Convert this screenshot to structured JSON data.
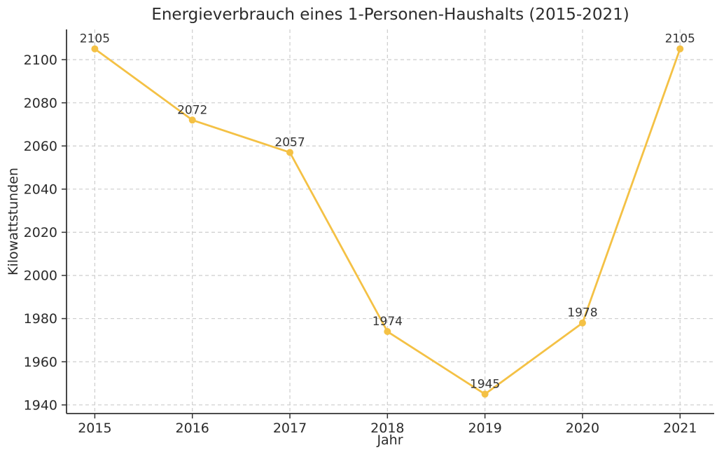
{
  "chart_data": {
    "type": "line",
    "title": "Energieverbrauch eines 1-Personen-Haushalts (2015-2021)",
    "xlabel": "Jahr",
    "ylabel": "Kilowattstunden",
    "x": [
      2015,
      2016,
      2017,
      2018,
      2019,
      2020,
      2021
    ],
    "series": [
      {
        "values": [
          2105,
          2072,
          2057,
          1974,
          1945,
          1978,
          2105
        ],
        "point_labels": [
          "2105",
          "2072",
          "2057",
          "1974",
          "1945",
          "1978",
          "2105"
        ]
      }
    ],
    "xticks": [
      "2015",
      "2016",
      "2017",
      "2018",
      "2019",
      "2020",
      "2021"
    ],
    "yticks": [
      1940,
      1960,
      1980,
      2000,
      2020,
      2040,
      2060,
      2080,
      2100
    ],
    "xlim": [
      2014.71,
      2021.35
    ],
    "ylim": [
      1936,
      2114
    ],
    "grid": true,
    "grid_style": "dashed",
    "legend_position": "none",
    "colors": {
      "line": "#F4C145",
      "marker": "#F4C145",
      "grid": "#CDCDCD",
      "spine": "#333333",
      "text": "#2B2B2B",
      "background": "#FFFFFF"
    }
  }
}
